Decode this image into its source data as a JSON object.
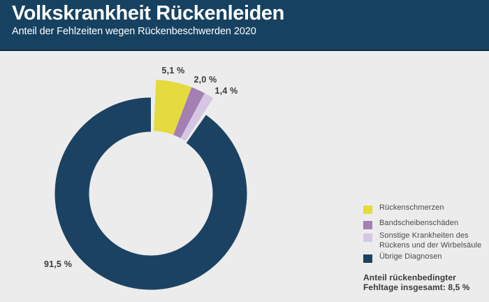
{
  "header": {
    "title": "Volkskrankheit Rückenleiden",
    "subtitle": "Anteil der Fehlzeiten wegen Rückenbeschwerden 2020"
  },
  "chart_data": {
    "type": "pie",
    "variant": "donut-exploded",
    "title": "Volkskrankheit Rückenleiden",
    "subtitle": "Anteil der Fehlzeiten wegen Rückenbeschwerden 2020",
    "unit": "%",
    "legend_position": "right",
    "segments": [
      {
        "label": "Rückenschmerzen",
        "value": 5.1,
        "display": "5,1 %",
        "color": "#e5da3e",
        "exploded": true
      },
      {
        "label": "Bandscheibenschäden",
        "value": 2.0,
        "display": "2,0 %",
        "color": "#a47fb4",
        "exploded": true
      },
      {
        "label": "Sonstige Krankheiten des Rückens und der Wirbelsäule",
        "value": 1.4,
        "display": "1,4 %",
        "color": "#d5c7e3",
        "exploded": true
      },
      {
        "label": "Übrige Diagnosen",
        "value": 91.5,
        "display": "91,5 %",
        "color": "#1c4263",
        "exploded": false
      }
    ],
    "total_note": "Anteil rückenbedingter Fehltage insgesamt: 8,5 %",
    "total_value": 8.5
  },
  "legend": {
    "items": [
      {
        "label": "Rückenschmerzen",
        "color": "#e5da3e"
      },
      {
        "label": "Bandscheibenschäden",
        "color": "#a47fb4"
      },
      {
        "label": "Sonstige Krankheiten des\nRückens und der Wirbelsäule",
        "color": "#d5c7e3"
      },
      {
        "label": "Übrige Diagnosen",
        "color": "#1c4263"
      }
    ]
  },
  "footer": {
    "text": "Anteil rückenbedingter\nFehltage insgesamt: 8,5 %"
  },
  "colors": {
    "background": "#ececec",
    "header_bg": "#174161",
    "header_border": "#132a47",
    "label_text": "#3a3a3a",
    "legend_text": "#4b4b4b"
  }
}
